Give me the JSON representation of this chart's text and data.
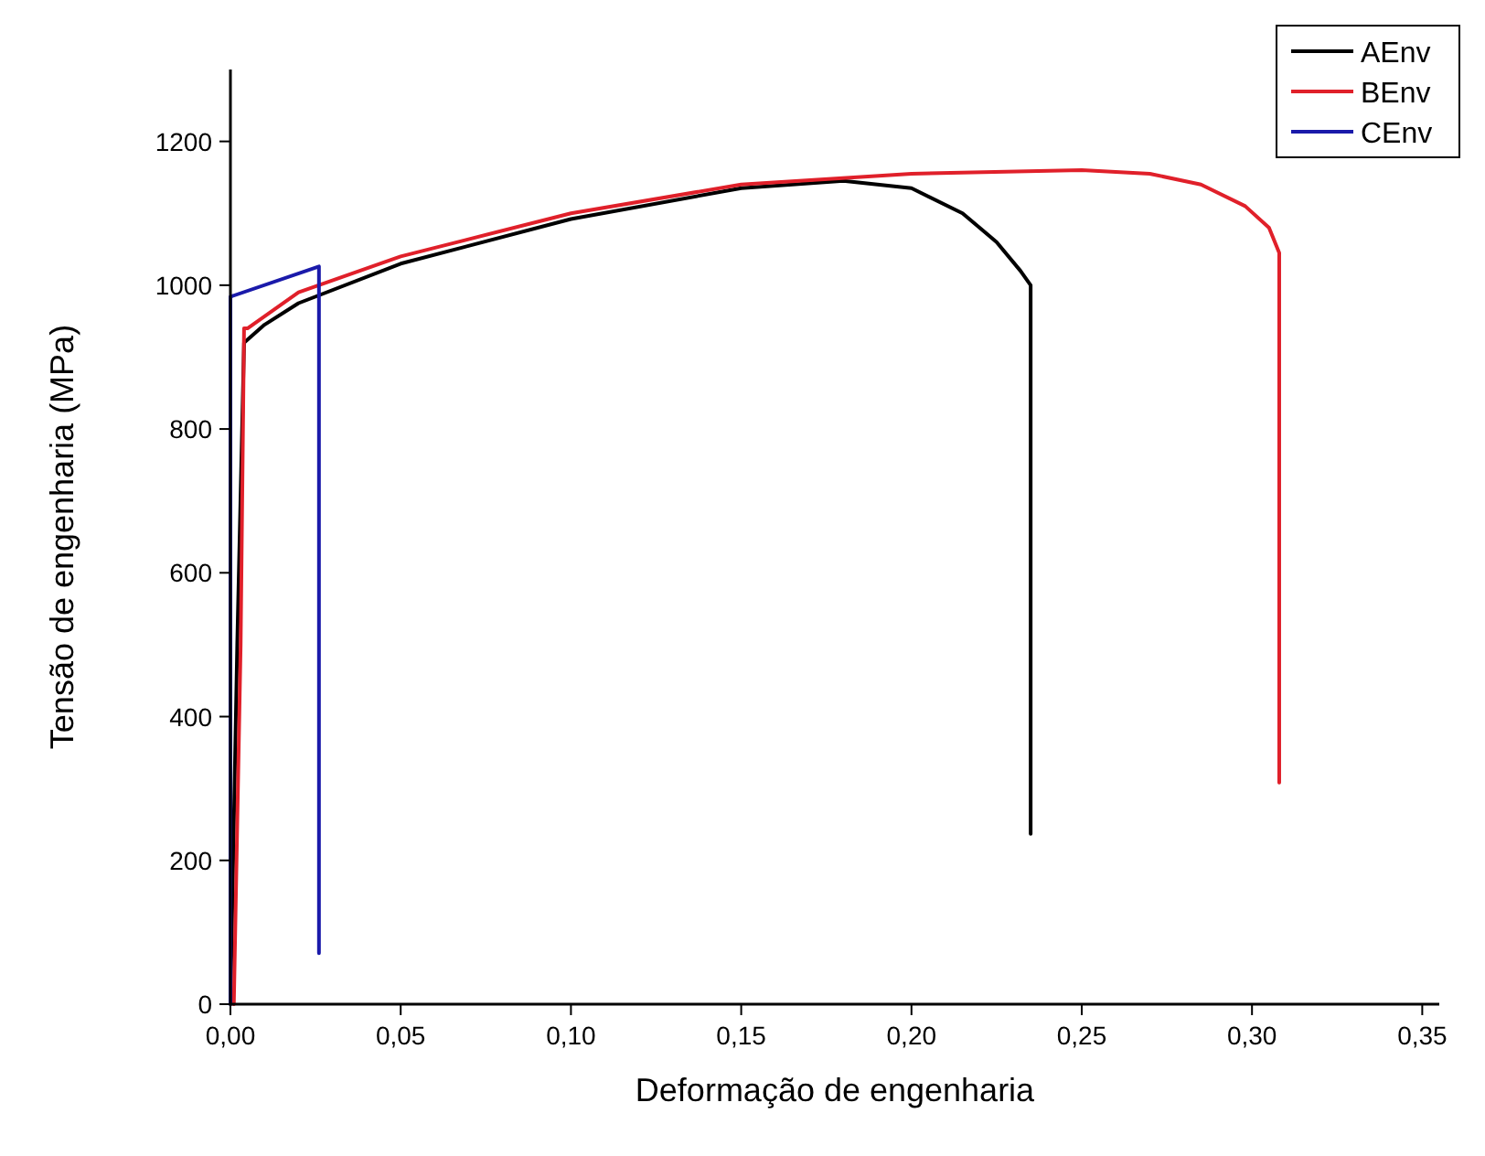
{
  "chart_data": {
    "type": "line",
    "xlabel": "Deformação de engenharia",
    "ylabel": "Tensão de engenharia (MPa)",
    "xlim": [
      0,
      0.355
    ],
    "ylim": [
      0,
      1300
    ],
    "xticks": [
      {
        "value": 0,
        "label": "0,00"
      },
      {
        "value": 0.05,
        "label": "0,05"
      },
      {
        "value": 0.1,
        "label": "0,10"
      },
      {
        "value": 0.15,
        "label": "0,15"
      },
      {
        "value": 0.2,
        "label": "0,20"
      },
      {
        "value": 0.25,
        "label": "0,25"
      },
      {
        "value": 0.3,
        "label": "0,30"
      },
      {
        "value": 0.35,
        "label": "0,35"
      }
    ],
    "yticks": [
      0,
      200,
      400,
      600,
      800,
      1000,
      1200
    ],
    "legend": "top right",
    "grid": false,
    "series": [
      {
        "name": "AEnv",
        "color": "#000000",
        "x": [
          0,
          0.002,
          0.004,
          0.01,
          0.02,
          0.05,
          0.1,
          0.15,
          0.18,
          0.2,
          0.215,
          0.225,
          0.232,
          0.235,
          0.235
        ],
        "values": [
          0,
          500,
          920,
          945,
          975,
          1030,
          1092,
          1135,
          1145,
          1135,
          1100,
          1060,
          1020,
          1000,
          237
        ]
      },
      {
        "name": "BEnv",
        "color": "#e0202a",
        "x": [
          0.001,
          0.003,
          0.004,
          0.005,
          0.02,
          0.05,
          0.1,
          0.15,
          0.2,
          0.25,
          0.27,
          0.285,
          0.298,
          0.305,
          0.308,
          0.308
        ],
        "values": [
          0,
          500,
          940,
          940,
          990,
          1040,
          1100,
          1140,
          1155,
          1160,
          1155,
          1140,
          1110,
          1080,
          1045,
          308
        ]
      },
      {
        "name": "CEnv",
        "color": "#1a1aaa",
        "x": [
          0,
          0,
          0.026,
          0.026
        ],
        "values": [
          0,
          984,
          1026,
          71
        ]
      }
    ]
  }
}
